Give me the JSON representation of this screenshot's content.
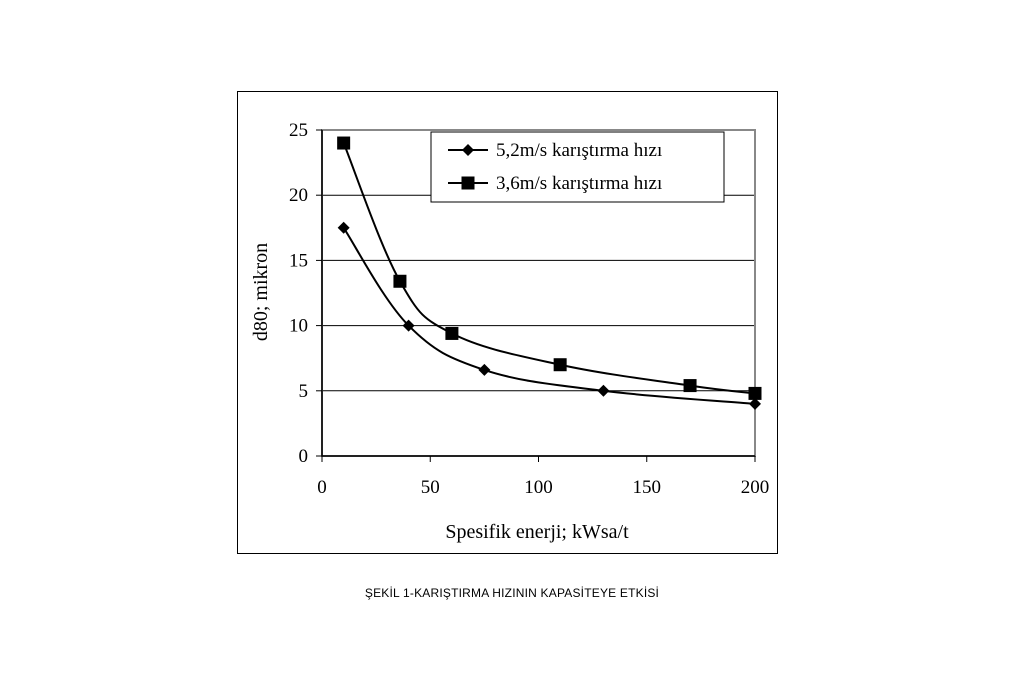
{
  "caption": "ŞEKİL 1-KARIŞTIRMA HIZININ KAPASİTEYE ETKİSİ",
  "chart_data": {
    "type": "line",
    "title": "",
    "xlabel": "Spesifik enerji; kWsa/t",
    "ylabel": "d80; mikron",
    "xlim": [
      0,
      200
    ],
    "ylim": [
      0,
      25
    ],
    "xticks": [
      0,
      50,
      100,
      150,
      200
    ],
    "yticks": [
      0,
      5,
      10,
      15,
      20,
      25
    ],
    "grid": "horizontal",
    "legend_position": "top-right",
    "series": [
      {
        "name": "5,2m/s karıştırma hızı",
        "marker": "diamond",
        "color": "#000000",
        "x": [
          10,
          40,
          75,
          130,
          200
        ],
        "y": [
          17.5,
          10,
          6.6,
          5,
          4
        ]
      },
      {
        "name": "3,6m/s karıştırma hızı",
        "marker": "square",
        "color": "#000000",
        "x": [
          10,
          36,
          60,
          110,
          170,
          200
        ],
        "y": [
          24,
          13.4,
          9.4,
          7,
          5.4,
          4.8
        ]
      }
    ]
  }
}
